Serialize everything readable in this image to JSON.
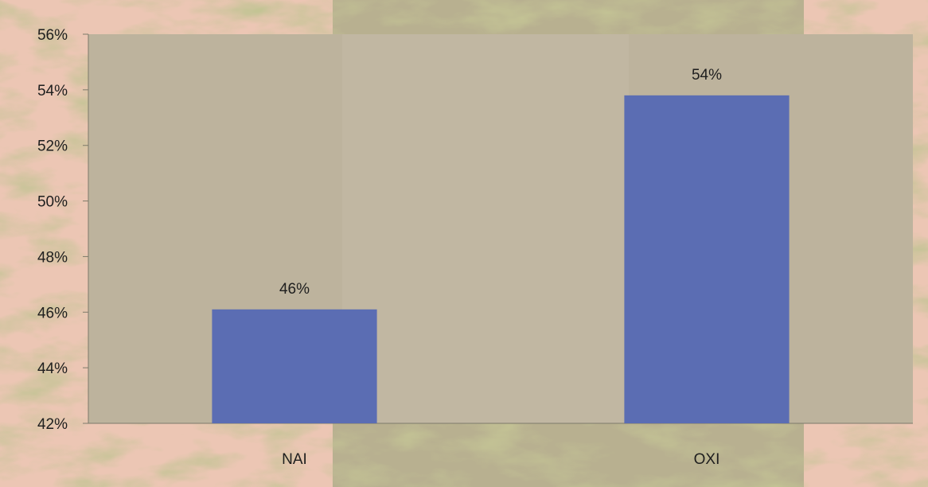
{
  "chart_data": {
    "type": "bar",
    "categories": [
      "NAI",
      "OXI"
    ],
    "values": [
      46.1,
      53.8
    ],
    "data_labels": [
      "46%",
      "54%"
    ],
    "ylim": [
      42,
      56
    ],
    "yticks": [
      42,
      44,
      46,
      48,
      50,
      52,
      54,
      56
    ],
    "ytick_labels": [
      "42%",
      "44%",
      "46%",
      "48%",
      "50%",
      "52%",
      "54%",
      "56%"
    ],
    "title": "",
    "xlabel": "",
    "ylabel": "",
    "grid": false,
    "legend": "none"
  },
  "colors": {
    "bar": "#5b6db3",
    "plot_area": "#bdb39d",
    "background_pink": "#ecc6b4",
    "background_crumpled": "#b8b090",
    "background_texture": "#9c9a58"
  }
}
